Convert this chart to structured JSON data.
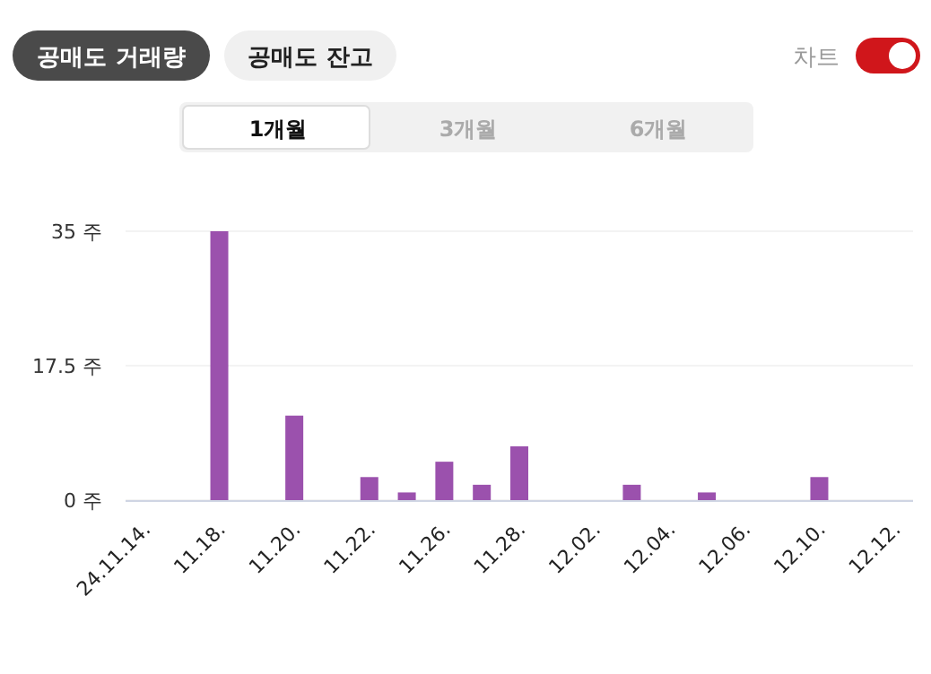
{
  "chart_data": {
    "type": "bar",
    "categories": [
      "24.11.14.",
      null,
      "11.18.",
      null,
      "11.20.",
      null,
      "11.22.",
      null,
      "11.26.",
      null,
      "11.28.",
      null,
      "12.02.",
      null,
      "12.04.",
      null,
      "12.06.",
      null,
      "12.10.",
      null,
      "12.12."
    ],
    "values": [
      0,
      0,
      35,
      0,
      11,
      0,
      3,
      1,
      5,
      2,
      7,
      0,
      0,
      2,
      0,
      1,
      0,
      0,
      3,
      0,
      0
    ],
    "color": "#9b51ad",
    "ylim": [
      0,
      35
    ],
    "yticks": [
      {
        "value": 0,
        "label": "0 주"
      },
      {
        "value": 17.5,
        "label": "17.5 주"
      },
      {
        "value": 35,
        "label": "35 주"
      }
    ],
    "grid": "y",
    "annotations": [
      "공매도 거래량",
      "공매도 잔고",
      "차트",
      "1개월",
      "3개월",
      "6개월"
    ]
  }
}
